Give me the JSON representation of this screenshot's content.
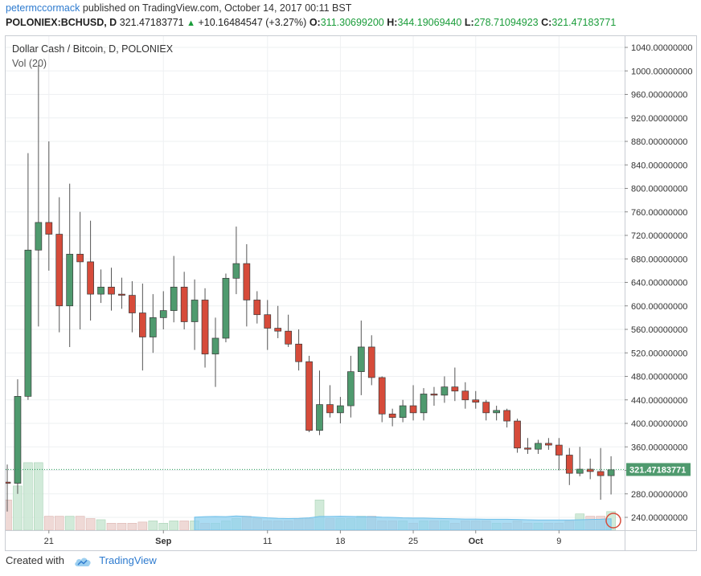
{
  "header": {
    "publisher": "petermccormack",
    "published_text": "published on TradingView.com, October 14, 2017 00:11 BST",
    "symbol": "POLONIEX:BCHUSD, D",
    "price": "321.47183771",
    "change": "+10.16484547 (+3.27%)",
    "o_label": "O:",
    "o_value": "311.30699200",
    "h_label": "H:",
    "h_value": "344.19069440",
    "l_label": "L:",
    "l_value": "278.71094923",
    "c_label": "C:",
    "c_value": "321.47183771"
  },
  "chart_data": {
    "type": "candlestick",
    "title": "Dollar Cash / Bitcoin, D, POLONIEX",
    "volume_label": "Vol (20)",
    "ylim": [
      210,
      1050
    ],
    "y_ticks": [
      "1040.00000000",
      "1000.00000000",
      "960.00000000",
      "920.00000000",
      "880.00000000",
      "840.00000000",
      "800.00000000",
      "760.00000000",
      "720.00000000",
      "680.00000000",
      "640.00000000",
      "600.00000000",
      "560.00000000",
      "520.00000000",
      "480.00000000",
      "440.00000000",
      "400.00000000",
      "360.00000000",
      "320.00000000",
      "280.00000000",
      "240.00000000"
    ],
    "y_tick_values": [
      1040,
      1000,
      960,
      920,
      880,
      840,
      800,
      760,
      720,
      680,
      640,
      600,
      560,
      520,
      480,
      440,
      400,
      360,
      320,
      280,
      240
    ],
    "x_ticks": [
      {
        "label": "21",
        "index": 4
      },
      {
        "label": "Sep",
        "index": 15
      },
      {
        "label": "11",
        "index": 25
      },
      {
        "label": "18",
        "index": 32
      },
      {
        "label": "25",
        "index": 39
      },
      {
        "label": "Oct",
        "index": 45
      },
      {
        "label": "9",
        "index": 53
      }
    ],
    "last_price": 321.47183771,
    "last_price_label": "321.47183771",
    "colors": {
      "up": "#4f9a6e",
      "down": "#d64b3a",
      "up_vol": "#c9e6d2",
      "down_vol": "#ecd2cf",
      "vol_ma": "#8fd0ef",
      "last_line": "#2a9d5c"
    },
    "candles": [
      {
        "o": 300,
        "h": 330,
        "l": 250,
        "c": 298
      },
      {
        "o": 298,
        "h": 475,
        "l": 280,
        "c": 446
      },
      {
        "o": 446,
        "h": 860,
        "l": 440,
        "c": 695
      },
      {
        "o": 695,
        "h": 1010,
        "l": 565,
        "c": 742
      },
      {
        "o": 742,
        "h": 880,
        "l": 660,
        "c": 722
      },
      {
        "o": 722,
        "h": 785,
        "l": 555,
        "c": 600
      },
      {
        "o": 600,
        "h": 808,
        "l": 530,
        "c": 688
      },
      {
        "o": 688,
        "h": 760,
        "l": 560,
        "c": 675
      },
      {
        "o": 675,
        "h": 745,
        "l": 575,
        "c": 620
      },
      {
        "o": 620,
        "h": 662,
        "l": 605,
        "c": 632
      },
      {
        "o": 632,
        "h": 665,
        "l": 592,
        "c": 620
      },
      {
        "o": 620,
        "h": 648,
        "l": 595,
        "c": 618
      },
      {
        "o": 618,
        "h": 642,
        "l": 555,
        "c": 588
      },
      {
        "o": 588,
        "h": 638,
        "l": 490,
        "c": 547
      },
      {
        "o": 547,
        "h": 620,
        "l": 520,
        "c": 580
      },
      {
        "o": 580,
        "h": 625,
        "l": 560,
        "c": 592
      },
      {
        "o": 592,
        "h": 685,
        "l": 572,
        "c": 632
      },
      {
        "o": 632,
        "h": 658,
        "l": 560,
        "c": 573
      },
      {
        "o": 573,
        "h": 645,
        "l": 525,
        "c": 610
      },
      {
        "o": 610,
        "h": 630,
        "l": 495,
        "c": 518
      },
      {
        "o": 518,
        "h": 580,
        "l": 462,
        "c": 545
      },
      {
        "o": 545,
        "h": 655,
        "l": 538,
        "c": 647
      },
      {
        "o": 647,
        "h": 735,
        "l": 620,
        "c": 672
      },
      {
        "o": 672,
        "h": 705,
        "l": 565,
        "c": 610
      },
      {
        "o": 610,
        "h": 625,
        "l": 570,
        "c": 585
      },
      {
        "o": 585,
        "h": 610,
        "l": 525,
        "c": 562
      },
      {
        "o": 562,
        "h": 600,
        "l": 545,
        "c": 557
      },
      {
        "o": 557,
        "h": 585,
        "l": 530,
        "c": 535
      },
      {
        "o": 535,
        "h": 560,
        "l": 490,
        "c": 505
      },
      {
        "o": 505,
        "h": 515,
        "l": 385,
        "c": 388
      },
      {
        "o": 388,
        "h": 490,
        "l": 380,
        "c": 432
      },
      {
        "o": 432,
        "h": 465,
        "l": 410,
        "c": 418
      },
      {
        "o": 418,
        "h": 445,
        "l": 400,
        "c": 430
      },
      {
        "o": 430,
        "h": 515,
        "l": 410,
        "c": 488
      },
      {
        "o": 488,
        "h": 575,
        "l": 448,
        "c": 530
      },
      {
        "o": 530,
        "h": 550,
        "l": 465,
        "c": 478
      },
      {
        "o": 478,
        "h": 480,
        "l": 402,
        "c": 416
      },
      {
        "o": 416,
        "h": 425,
        "l": 395,
        "c": 410
      },
      {
        "o": 410,
        "h": 440,
        "l": 402,
        "c": 430
      },
      {
        "o": 430,
        "h": 465,
        "l": 405,
        "c": 418
      },
      {
        "o": 418,
        "h": 460,
        "l": 405,
        "c": 450
      },
      {
        "o": 450,
        "h": 462,
        "l": 430,
        "c": 448
      },
      {
        "o": 448,
        "h": 480,
        "l": 435,
        "c": 462
      },
      {
        "o": 462,
        "h": 495,
        "l": 438,
        "c": 455
      },
      {
        "o": 455,
        "h": 470,
        "l": 425,
        "c": 440
      },
      {
        "o": 440,
        "h": 455,
        "l": 425,
        "c": 436
      },
      {
        "o": 436,
        "h": 440,
        "l": 405,
        "c": 418
      },
      {
        "o": 418,
        "h": 430,
        "l": 405,
        "c": 422
      },
      {
        "o": 422,
        "h": 425,
        "l": 393,
        "c": 404
      },
      {
        "o": 404,
        "h": 408,
        "l": 350,
        "c": 358
      },
      {
        "o": 358,
        "h": 375,
        "l": 348,
        "c": 356
      },
      {
        "o": 356,
        "h": 372,
        "l": 348,
        "c": 366
      },
      {
        "o": 366,
        "h": 375,
        "l": 355,
        "c": 363
      },
      {
        "o": 363,
        "h": 375,
        "l": 320,
        "c": 346
      },
      {
        "o": 346,
        "h": 358,
        "l": 295,
        "c": 315
      },
      {
        "o": 315,
        "h": 360,
        "l": 310,
        "c": 322
      },
      {
        "o": 322,
        "h": 340,
        "l": 305,
        "c": 318
      },
      {
        "o": 318,
        "h": 358,
        "l": 270,
        "c": 311
      },
      {
        "o": 311,
        "h": 344,
        "l": 279,
        "c": 321
      }
    ],
    "volume": [
      13,
      19,
      29,
      29,
      6,
      6,
      6,
      6,
      5,
      4.5,
      3,
      3,
      3,
      3.5,
      4,
      3,
      4,
      4,
      4,
      3,
      3,
      4,
      5,
      6,
      5,
      4,
      4,
      4,
      5,
      5,
      13,
      5,
      5,
      5,
      6,
      6,
      4,
      4,
      4,
      3,
      4,
      4,
      4,
      3,
      4,
      4,
      4,
      3,
      3,
      4,
      3,
      3,
      3,
      3,
      4,
      7,
      6,
      6,
      8
    ],
    "volume_ma": [
      null,
      null,
      null,
      null,
      null,
      null,
      null,
      null,
      null,
      null,
      null,
      null,
      null,
      null,
      null,
      null,
      null,
      null,
      5.6,
      5.8,
      5.9,
      5.8,
      6.1,
      5.9,
      5.6,
      5.3,
      5.1,
      5.0,
      5.1,
      5.3,
      5.9,
      5.9,
      6.0,
      5.9,
      5.8,
      5.8,
      5.6,
      5.5,
      5.3,
      5.2,
      5.2,
      5.1,
      5.0,
      4.9,
      4.8,
      4.8,
      4.7,
      4.7,
      4.7,
      4.6,
      4.5,
      4.4,
      4.4,
      4.4,
      4.4,
      4.5,
      4.6,
      4.7,
      4.9
    ]
  },
  "footer": {
    "created_with": "Created with",
    "brand": "TradingView"
  }
}
